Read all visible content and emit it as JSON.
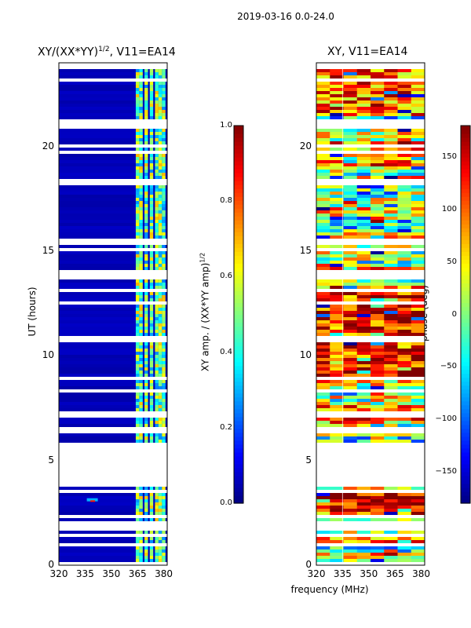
{
  "suptitle": "2019-03-16 0.0-24.0",
  "chart_data": [
    {
      "type": "heatmap",
      "title_prefix": "XY/(XX*YY)",
      "title_exp": "1/2",
      "title_suffix": ", V11=EA14",
      "xlabel": "",
      "ylabel": "UT (hours)",
      "xlim": [
        320,
        382
      ],
      "ylim": [
        0,
        24
      ],
      "x_ticks": [
        320,
        335,
        350,
        365,
        380
      ],
      "y_ticks": [
        0,
        5,
        10,
        15,
        20
      ],
      "colorbar": {
        "label_prefix": "XY amp. / (XX*YY amp)",
        "label_exp": "1/2",
        "range": [
          0.0,
          1.0
        ],
        "ticks": [
          "0.0",
          "0.2",
          "0.4",
          "0.6",
          "0.8",
          "1.0"
        ],
        "colormap": "jet"
      }
    },
    {
      "type": "heatmap",
      "title": "XY, V11=EA14",
      "xlabel": "frequency (MHz)",
      "ylabel": "",
      "xlim": [
        320,
        382
      ],
      "ylim": [
        0,
        24
      ],
      "x_ticks": [
        320,
        335,
        350,
        365,
        380
      ],
      "y_ticks": [
        0,
        5,
        10,
        15,
        20
      ],
      "colorbar": {
        "label": "phase (deg)",
        "range": [
          -180,
          180
        ],
        "ticks": [
          "−150",
          "−100",
          "−50",
          "0",
          "50",
          "100",
          "150"
        ],
        "colormap": "jet"
      }
    }
  ]
}
